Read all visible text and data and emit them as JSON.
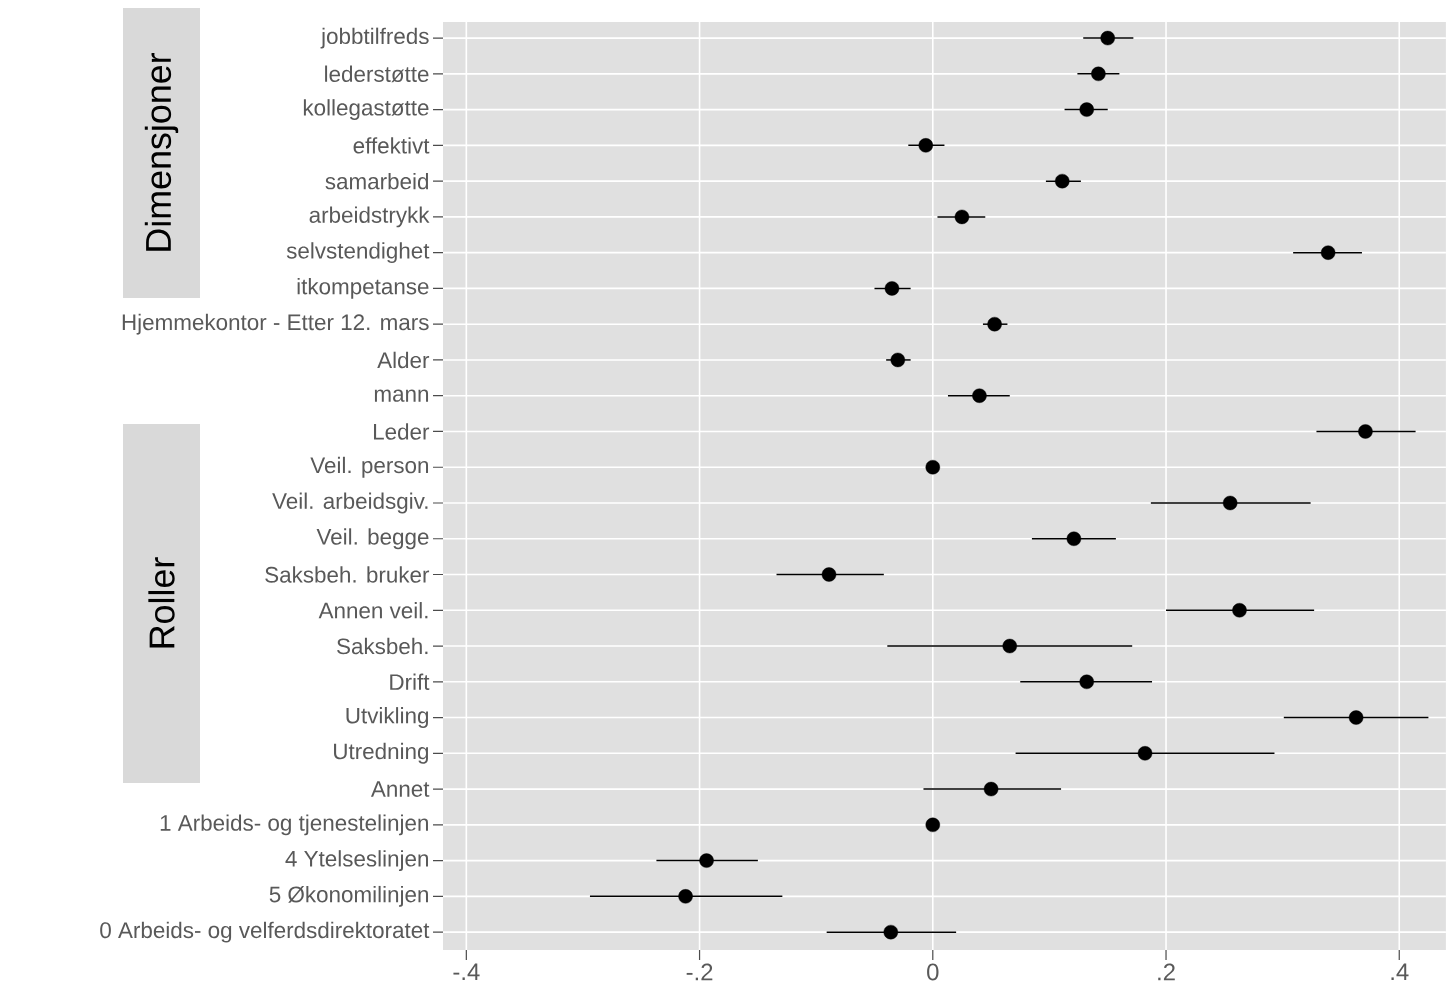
{
  "chart_data": {
    "type": "scatter",
    "orientation": "horizontal",
    "categories": [
      "jobbtilfreds",
      "lederstøtte",
      "kollegastøtte",
      "effektivt",
      "samarbeid",
      "arbeidstrykk",
      "selvstendighet",
      "itkompetanse",
      "Hjemmekontor  - Etter 12. mars",
      "Alder",
      "mann",
      "Leder",
      "Veil. person",
      "Veil. arbeidsgiv.",
      "Veil. begge",
      "Saksbeh. bruker",
      "Annen veil.",
      "Saksbeh.",
      "Drift",
      "Utvikling",
      "Utredning",
      "Annet",
      "1 Arbeids- og tjenestelinjen",
      "4 Ytelseslinjen",
      "5 Økonomilinjen",
      "0 Arbeids- og velferdsdirektoratet"
    ],
    "values": [
      0.15,
      0.142,
      0.132,
      -0.006,
      0.111,
      0.025,
      0.339,
      -0.035,
      0.053,
      -0.03,
      0.04,
      0.371,
      0,
      0.255,
      0.121,
      -0.089,
      0.263,
      0.066,
      0.132,
      0.363,
      0.182,
      0.05,
      0,
      -0.194,
      -0.212,
      -0.036
    ],
    "errors": [
      [
        0.129,
        0.172
      ],
      [
        0.124,
        0.16
      ],
      [
        0.113,
        0.15
      ],
      [
        -0.021,
        0.01
      ],
      [
        0.097,
        0.127
      ],
      [
        0.004,
        0.045
      ],
      [
        0.309,
        0.368
      ],
      [
        -0.05,
        -0.019
      ],
      [
        0.043,
        0.064
      ],
      [
        -0.04,
        -0.019
      ],
      [
        0.013,
        0.066
      ],
      [
        0.329,
        0.414
      ],
      null,
      [
        0.187,
        0.324
      ],
      [
        0.085,
        0.157
      ],
      [
        -0.134,
        -0.042
      ],
      [
        0.2,
        0.327
      ],
      [
        -0.039,
        0.171
      ],
      [
        0.075,
        0.188
      ],
      [
        0.301,
        0.425
      ],
      [
        0.071,
        0.293
      ],
      [
        -0.008,
        0.11
      ],
      null,
      [
        -0.237,
        -0.15
      ],
      [
        -0.294,
        -0.129
      ],
      [
        -0.091,
        0.02
      ]
    ],
    "color": "#000000",
    "marker": "circle",
    "grid": true,
    "xlim": [
      -0.42,
      0.44
    ],
    "xticks": [
      {
        "value": -0.4,
        "label": "-.4"
      },
      {
        "value": -0.2,
        "label": "-.2"
      },
      0,
      {
        "value": 0.2,
        "label": ".2"
      },
      {
        "value": 0.4,
        "label": ".4"
      }
    ],
    "annotations": [
      "Dimensjoner",
      "Roller"
    ]
  }
}
